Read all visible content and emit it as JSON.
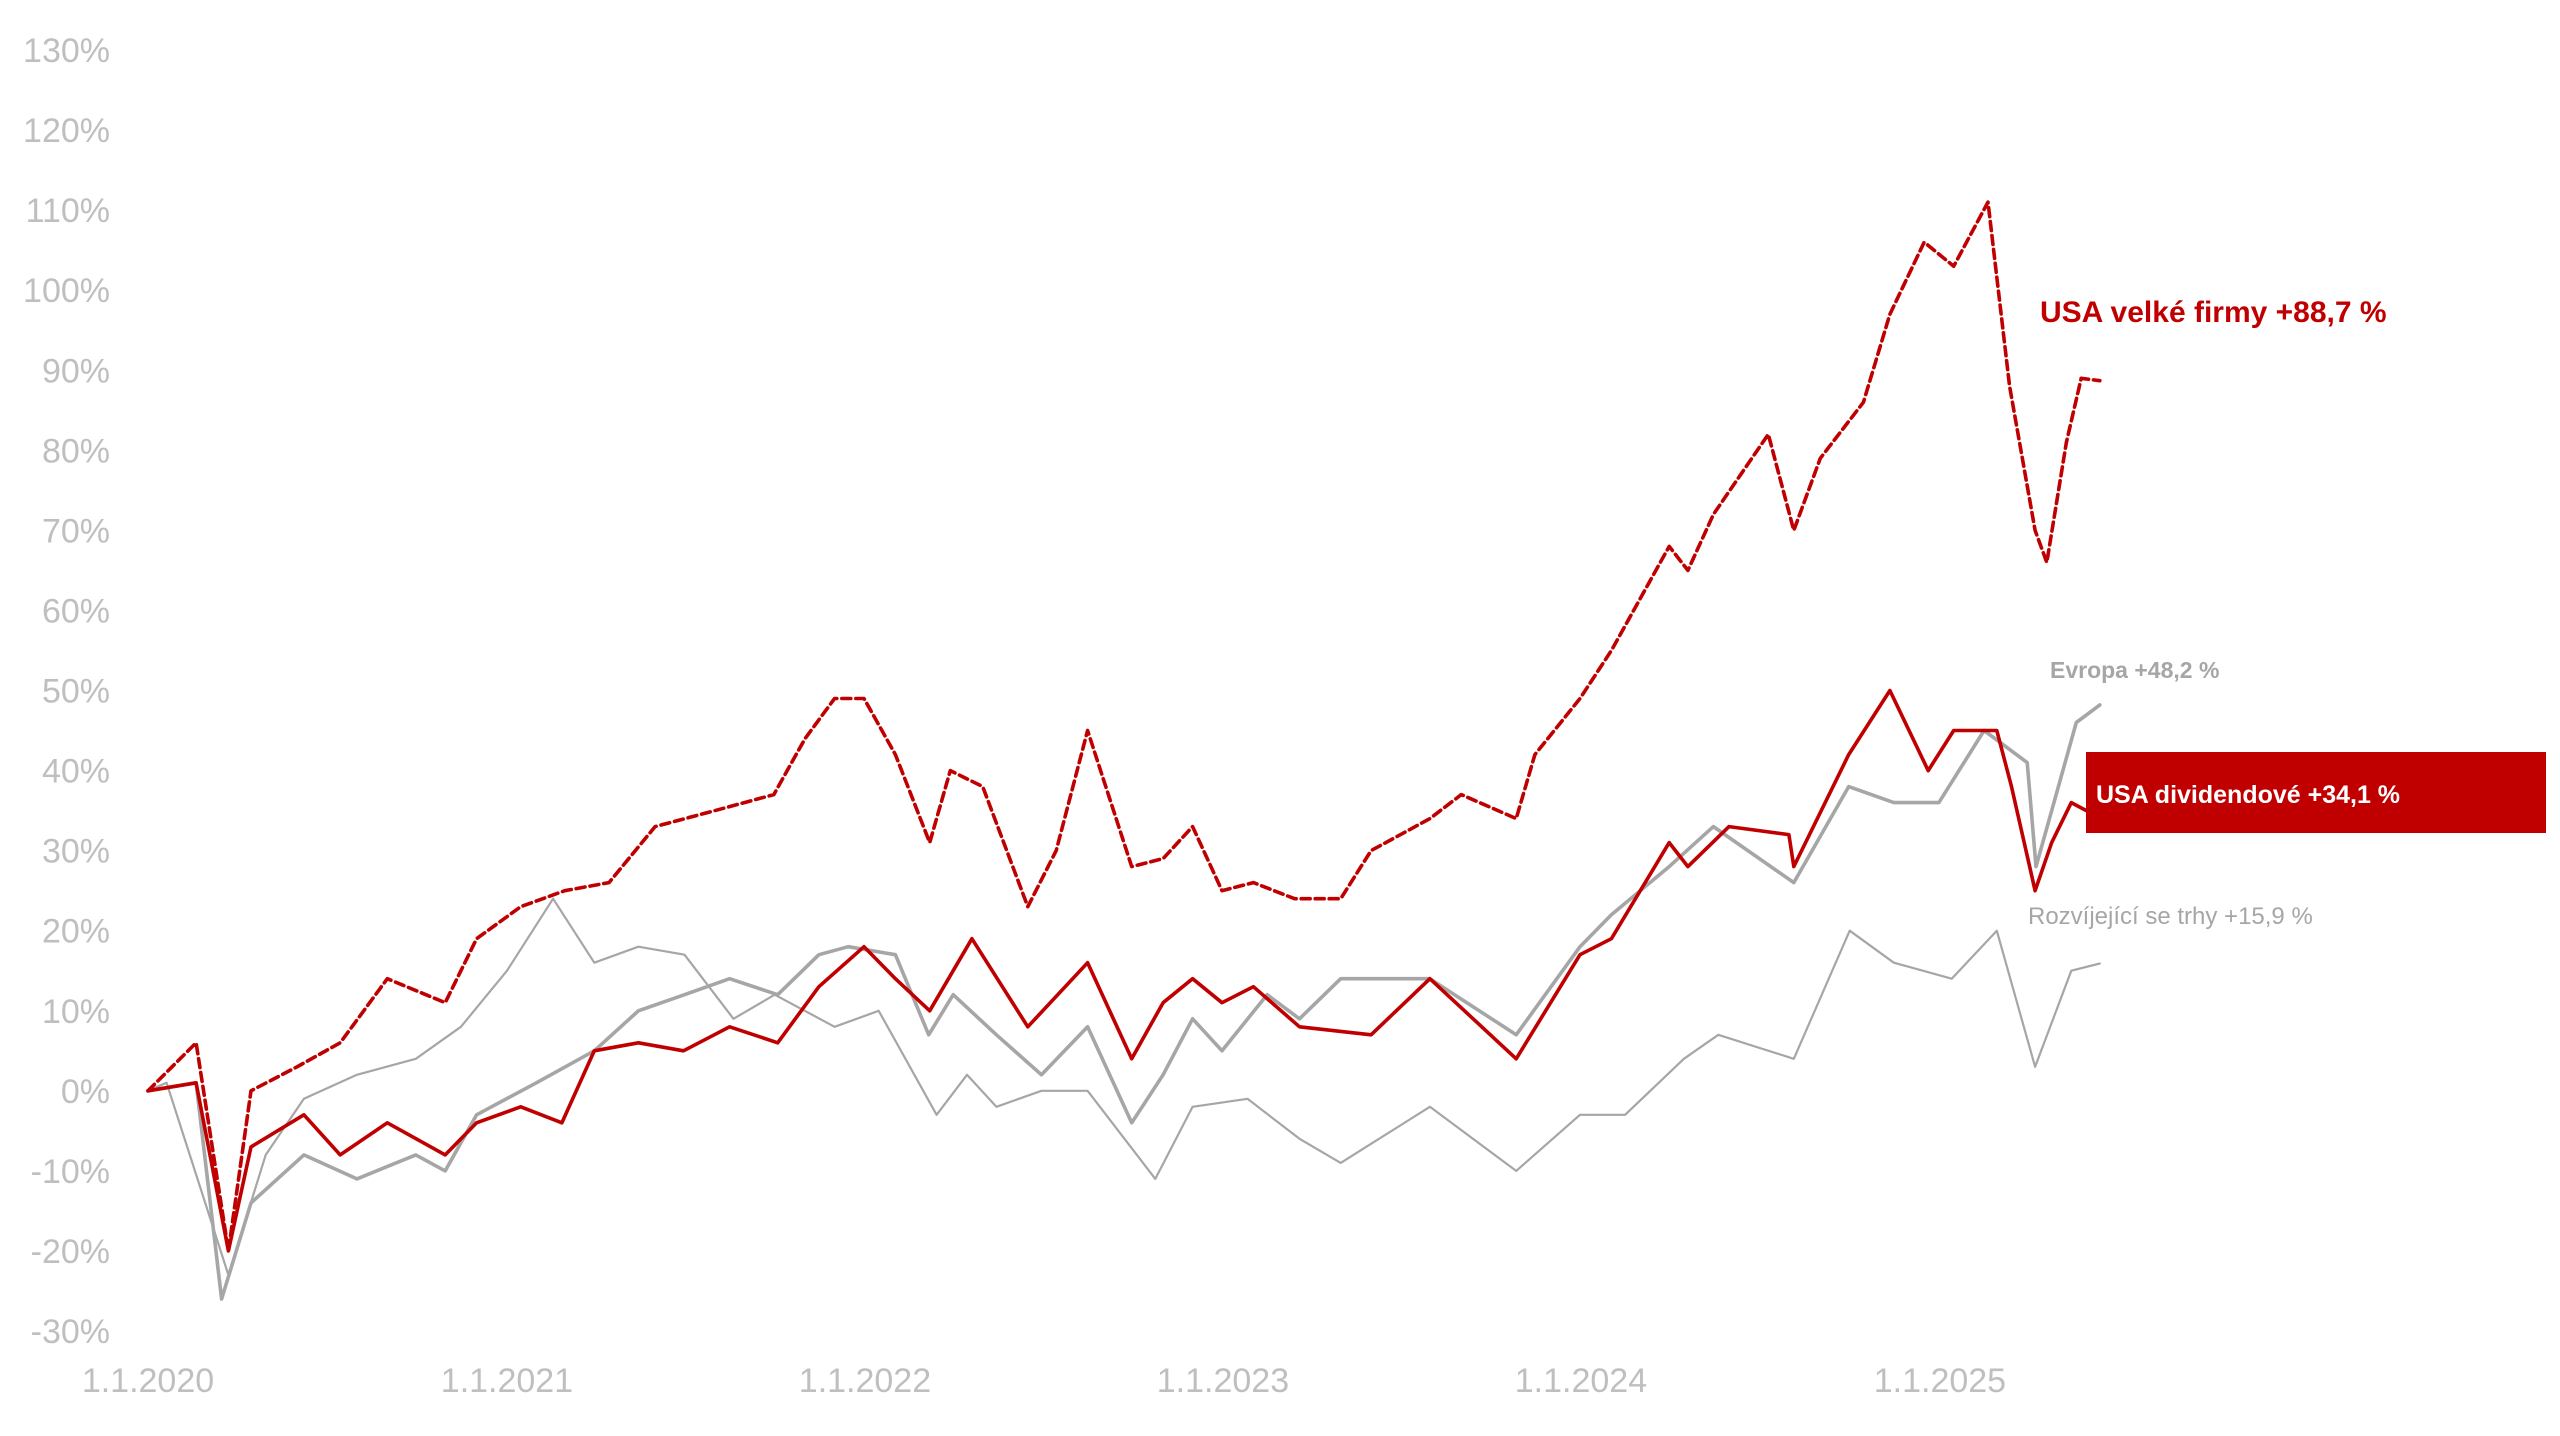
{
  "chart_data": {
    "type": "line",
    "title": "",
    "xlabel": "",
    "ylabel": "",
    "x_ticks": [
      "1.1.2020",
      "1.1.2021",
      "1.1.2022",
      "1.1.2023",
      "1.1.2024",
      "1.1.2025"
    ],
    "y_ticks": [
      "130%",
      "120%",
      "110%",
      "100%",
      "90%",
      "80%",
      "70%",
      "60%",
      "50%",
      "40%",
      "30%",
      "20%",
      "10%",
      "0%",
      "-10%",
      "-20%",
      "-30%"
    ],
    "ylim": [
      -30,
      130
    ],
    "xlim": [
      "2020-01-01",
      "2025-06-30"
    ],
    "grid": false,
    "legend": "none (series labelled directly at line ends)",
    "series": [
      {
        "name": "USA velké firmy +88,7 %",
        "color": "#c00000",
        "style": "dashed",
        "points": [
          [
            "2020-01-01",
            0
          ],
          [
            "2020-02-19",
            6
          ],
          [
            "2020-03-23",
            -20
          ],
          [
            "2020-04-15",
            0
          ],
          [
            "2020-06-01",
            3
          ],
          [
            "2020-07-15",
            6
          ],
          [
            "2020-09-01",
            14
          ],
          [
            "2020-10-30",
            11
          ],
          [
            "2020-12-01",
            19
          ],
          [
            "2021-01-15",
            23
          ],
          [
            "2021-03-01",
            25
          ],
          [
            "2021-04-15",
            26
          ],
          [
            "2021-06-01",
            33
          ],
          [
            "2021-08-01",
            35
          ],
          [
            "2021-09-30",
            37
          ],
          [
            "2021-11-01",
            44
          ],
          [
            "2021-12-01",
            49
          ],
          [
            "2021-12-31",
            49
          ],
          [
            "2022-02-01",
            42
          ],
          [
            "2022-03-08",
            31
          ],
          [
            "2022-03-29",
            40
          ],
          [
            "2022-05-01",
            38
          ],
          [
            "2022-06-16",
            23
          ],
          [
            "2022-07-15",
            30
          ],
          [
            "2022-08-16",
            45
          ],
          [
            "2022-09-30",
            28
          ],
          [
            "2022-11-01",
            29
          ],
          [
            "2022-12-01",
            33
          ],
          [
            "2022-12-31",
            25
          ],
          [
            "2023-02-01",
            26
          ],
          [
            "2023-03-15",
            24
          ],
          [
            "2023-05-01",
            24
          ],
          [
            "2023-06-01",
            30
          ],
          [
            "2023-07-31",
            34
          ],
          [
            "2023-09-01",
            37
          ],
          [
            "2023-10-27",
            34
          ],
          [
            "2023-11-15",
            42
          ],
          [
            "2023-12-31",
            49
          ],
          [
            "2024-02-01",
            55
          ],
          [
            "2024-03-31",
            68
          ],
          [
            "2024-04-19",
            65
          ],
          [
            "2024-05-15",
            72
          ],
          [
            "2024-07-10",
            82
          ],
          [
            "2024-08-05",
            70
          ],
          [
            "2024-09-01",
            79
          ],
          [
            "2024-10-15",
            86
          ],
          [
            "2024-11-11",
            97
          ],
          [
            "2024-12-16",
            106
          ],
          [
            "2025-01-15",
            103
          ],
          [
            "2025-02-19",
            111
          ],
          [
            "2025-03-13",
            88
          ],
          [
            "2025-04-08",
            70
          ],
          [
            "2025-04-20",
            66
          ],
          [
            "2025-05-10",
            81
          ],
          [
            "2025-05-25",
            89
          ],
          [
            "2025-06-13",
            88.7
          ]
        ]
      },
      {
        "name": "Evropa +48,2 %",
        "color": "#a6a6a6",
        "style": "solid",
        "points": [
          [
            "2020-01-01",
            0
          ],
          [
            "2020-02-19",
            1
          ],
          [
            "2020-03-16",
            -26
          ],
          [
            "2020-04-15",
            -14
          ],
          [
            "2020-06-08",
            -8
          ],
          [
            "2020-08-01",
            -11
          ],
          [
            "2020-09-30",
            -8
          ],
          [
            "2020-10-30",
            -10
          ],
          [
            "2020-12-01",
            -3
          ],
          [
            "2021-01-31",
            1
          ],
          [
            "2021-03-31",
            5
          ],
          [
            "2021-05-15",
            10
          ],
          [
            "2021-07-01",
            12
          ],
          [
            "2021-08-16",
            14
          ],
          [
            "2021-10-04",
            12
          ],
          [
            "2021-11-15",
            17
          ],
          [
            "2021-12-15",
            18
          ],
          [
            "2022-02-01",
            17
          ],
          [
            "2022-03-07",
            7
          ],
          [
            "2022-04-01",
            12
          ],
          [
            "2022-05-15",
            7
          ],
          [
            "2022-06-30",
            2
          ],
          [
            "2022-08-16",
            8
          ],
          [
            "2022-09-30",
            -4
          ],
          [
            "2022-11-01",
            2
          ],
          [
            "2022-12-01",
            9
          ],
          [
            "2022-12-31",
            5
          ],
          [
            "2023-02-15",
            12
          ],
          [
            "2023-03-20",
            9
          ],
          [
            "2023-05-01",
            14
          ],
          [
            "2023-07-31",
            14
          ],
          [
            "2023-10-27",
            7
          ],
          [
            "2023-12-31",
            18
          ],
          [
            "2024-02-01",
            22
          ],
          [
            "2024-03-31",
            28
          ],
          [
            "2024-05-15",
            33
          ],
          [
            "2024-08-05",
            26
          ],
          [
            "2024-09-30",
            38
          ],
          [
            "2024-11-15",
            36
          ],
          [
            "2024-12-31",
            36
          ],
          [
            "2025-02-15",
            45
          ],
          [
            "2025-03-31",
            41
          ],
          [
            "2025-04-09",
            28
          ],
          [
            "2025-04-25",
            35
          ],
          [
            "2025-05-20",
            46
          ],
          [
            "2025-06-13",
            48.2
          ]
        ]
      },
      {
        "name": "USA dividendové +34,1 %",
        "color": "#c00000",
        "style": "solid",
        "points": [
          [
            "2020-01-01",
            0
          ],
          [
            "2020-02-19",
            1
          ],
          [
            "2020-03-23",
            -20
          ],
          [
            "2020-04-15",
            -7
          ],
          [
            "2020-06-08",
            -3
          ],
          [
            "2020-07-15",
            -8
          ],
          [
            "2020-09-01",
            -4
          ],
          [
            "2020-10-30",
            -8
          ],
          [
            "2020-12-01",
            -4
          ],
          [
            "2021-01-15",
            -2
          ],
          [
            "2021-02-26",
            -4
          ],
          [
            "2021-03-31",
            5
          ],
          [
            "2021-05-15",
            6
          ],
          [
            "2021-06-30",
            5
          ],
          [
            "2021-08-16",
            8
          ],
          [
            "2021-10-04",
            6
          ],
          [
            "2021-11-15",
            13
          ],
          [
            "2021-12-31",
            18
          ],
          [
            "2022-02-01",
            14
          ],
          [
            "2022-03-08",
            10
          ],
          [
            "2022-04-20",
            19
          ],
          [
            "2022-06-16",
            8
          ],
          [
            "2022-08-16",
            16
          ],
          [
            "2022-09-30",
            4
          ],
          [
            "2022-11-01",
            11
          ],
          [
            "2022-12-01",
            14
          ],
          [
            "2022-12-31",
            11
          ],
          [
            "2023-02-01",
            13
          ],
          [
            "2023-03-20",
            8
          ],
          [
            "2023-06-01",
            7
          ],
          [
            "2023-07-31",
            14
          ],
          [
            "2023-10-27",
            4
          ],
          [
            "2023-12-31",
            17
          ],
          [
            "2024-02-01",
            19
          ],
          [
            "2024-03-31",
            31
          ],
          [
            "2024-04-19",
            28
          ],
          [
            "2024-05-31",
            33
          ],
          [
            "2024-07-31",
            32
          ],
          [
            "2024-08-05",
            28
          ],
          [
            "2024-09-30",
            42
          ],
          [
            "2024-11-11",
            50
          ],
          [
            "2024-12-20",
            40
          ],
          [
            "2025-01-15",
            45
          ],
          [
            "2025-02-28",
            45
          ],
          [
            "2025-03-15",
            38
          ],
          [
            "2025-04-08",
            25
          ],
          [
            "2025-04-25",
            31
          ],
          [
            "2025-05-15",
            36
          ],
          [
            "2025-06-13",
            34.1
          ]
        ]
      },
      {
        "name": "Rozvíjející se trhy +15,9 %",
        "color": "#a6a6a6",
        "style": "solid-thin",
        "points": [
          [
            "2020-01-01",
            0
          ],
          [
            "2020-01-20",
            1
          ],
          [
            "2020-03-23",
            -23
          ],
          [
            "2020-04-30",
            -8
          ],
          [
            "2020-06-08",
            -1
          ],
          [
            "2020-08-01",
            2
          ],
          [
            "2020-09-30",
            4
          ],
          [
            "2020-11-15",
            8
          ],
          [
            "2021-01-01",
            15
          ],
          [
            "2021-02-17",
            24
          ],
          [
            "2021-03-31",
            16
          ],
          [
            "2021-05-15",
            18
          ],
          [
            "2021-07-01",
            17
          ],
          [
            "2021-08-20",
            9
          ],
          [
            "2021-10-01",
            12
          ],
          [
            "2021-12-01",
            8
          ],
          [
            "2022-01-15",
            10
          ],
          [
            "2022-03-15",
            -3
          ],
          [
            "2022-04-15",
            2
          ],
          [
            "2022-05-15",
            -2
          ],
          [
            "2022-06-30",
            0
          ],
          [
            "2022-08-16",
            0
          ],
          [
            "2022-10-24",
            -11
          ],
          [
            "2022-12-01",
            -2
          ],
          [
            "2023-01-26",
            -1
          ],
          [
            "2023-03-20",
            -6
          ],
          [
            "2023-05-01",
            -9
          ],
          [
            "2023-07-31",
            -2
          ],
          [
            "2023-10-27",
            -10
          ],
          [
            "2023-12-31",
            -3
          ],
          [
            "2024-02-15",
            -3
          ],
          [
            "2024-04-15",
            4
          ],
          [
            "2024-05-20",
            7
          ],
          [
            "2024-08-05",
            4
          ],
          [
            "2024-10-01",
            20
          ],
          [
            "2024-11-15",
            16
          ],
          [
            "2025-01-13",
            14
          ],
          [
            "2025-02-28",
            20
          ],
          [
            "2025-04-08",
            3
          ],
          [
            "2025-05-15",
            15
          ],
          [
            "2025-06-13",
            15.9
          ]
        ]
      }
    ],
    "annotations": [
      "USA velké firmy +88,7 %",
      "Evropa +48,2 %",
      "USA dividendové +34,1 %",
      "Rozvíjející se trhy +15,9 %"
    ]
  }
}
